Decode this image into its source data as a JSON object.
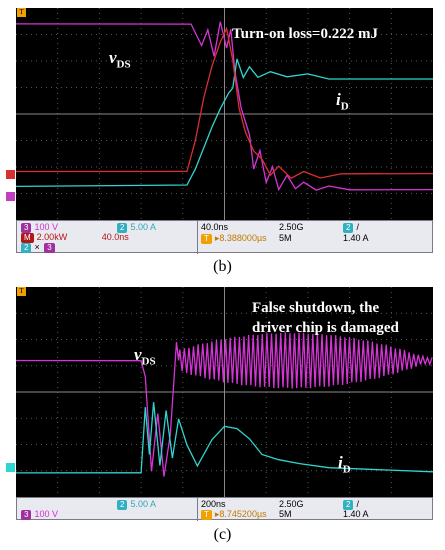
{
  "colors": {
    "vds": "#d535d5",
    "id": "#30d5d0",
    "power": "#d83030",
    "grid": "#555555",
    "trigger": "#f0a000"
  },
  "panel_b": {
    "caption": "(b)",
    "annotation": "Turn-on loss=0.222 mJ",
    "vds_label_main": "v",
    "vds_label_sub": "DS",
    "id_label_main": "i",
    "id_label_sub": "D",
    "info": {
      "ch3_badge": "3",
      "ch3_scale": "100 V",
      "ch2_badge": "2",
      "ch2_scale": "5.00 A",
      "math_badge": "M",
      "math_scale": "2.00kW",
      "math_time": "40.0ns",
      "math_src_a": "2",
      "math_op": "×",
      "math_src_b": "3",
      "timebase": "40.0ns",
      "sample_rate": "2.50G",
      "trig_ch": "2",
      "trig_slope": "/",
      "trig_icon": "T",
      "delay": "▸8.388000µs",
      "record": "5M",
      "trig_level": "1.40 A"
    }
  },
  "panel_c": {
    "caption": "(c)",
    "annotation_line1": "False shutdown, the",
    "annotation_line2": "driver chip is damaged",
    "vds_label_main": "v",
    "vds_label_sub": "DS",
    "id_label_main": "i",
    "id_label_sub": "D",
    "info": {
      "ch3_badge": "3",
      "ch3_scale": "100 V",
      "ch2_badge": "2",
      "ch2_scale": "5.00 A",
      "timebase": "200ns",
      "sample_rate": "2.50G",
      "trig_ch": "2",
      "trig_slope": "/",
      "trig_icon": "T",
      "delay": "▸8.745200µs",
      "record": "5M",
      "trig_level": "1.40 A"
    }
  },
  "chart_data": [
    {
      "type": "line",
      "panel": "b",
      "x_unit": "divisions (40.0 ns/div)",
      "y_unit": "divisions",
      "xlim": [
        0,
        10
      ],
      "ylim": [
        0,
        8
      ],
      "grid": true,
      "series": [
        {
          "name": "vDS",
          "color": "#d535d5",
          "points": [
            [
              0,
              7.4
            ],
            [
              4.2,
              7.4
            ],
            [
              4.45,
              6.6
            ],
            [
              4.6,
              7.2
            ],
            [
              4.75,
              6.2
            ],
            [
              4.9,
              7.5
            ],
            [
              5.05,
              6.5
            ],
            [
              5.15,
              7.2
            ],
            [
              5.25,
              5.6
            ],
            [
              5.4,
              4.2
            ],
            [
              5.6,
              3.2
            ],
            [
              5.7,
              1.9
            ],
            [
              5.85,
              2.6
            ],
            [
              6.0,
              1.4
            ],
            [
              6.15,
              2.0
            ],
            [
              6.3,
              1.15
            ],
            [
              6.5,
              1.7
            ],
            [
              6.7,
              1.2
            ],
            [
              6.9,
              1.45
            ],
            [
              7.2,
              1.15
            ],
            [
              7.5,
              1.3
            ],
            [
              8.0,
              1.15
            ],
            [
              10,
              1.15
            ]
          ]
        },
        {
          "name": "iD",
          "color": "#30d5d0",
          "points": [
            [
              0,
              1.25
            ],
            [
              4.1,
              1.3
            ],
            [
              4.3,
              1.9
            ],
            [
              4.5,
              2.7
            ],
            [
              4.7,
              3.5
            ],
            [
              4.9,
              4.2
            ],
            [
              5.1,
              4.8
            ],
            [
              5.2,
              5.0
            ],
            [
              5.3,
              6.1
            ],
            [
              5.45,
              5.4
            ],
            [
              5.6,
              5.8
            ],
            [
              5.8,
              5.4
            ],
            [
              6.1,
              5.6
            ],
            [
              6.5,
              5.4
            ],
            [
              7.0,
              5.5
            ],
            [
              7.5,
              5.3
            ],
            [
              8.5,
              5.3
            ],
            [
              10,
              5.3
            ]
          ]
        },
        {
          "name": "Turn-on power",
          "color": "#d83030",
          "points": [
            [
              0,
              1.85
            ],
            [
              4.1,
              1.85
            ],
            [
              4.3,
              3.0
            ],
            [
              4.5,
              4.6
            ],
            [
              4.7,
              5.8
            ],
            [
              4.9,
              6.7
            ],
            [
              5.05,
              7.2
            ],
            [
              5.2,
              6.0
            ],
            [
              5.35,
              4.2
            ],
            [
              5.5,
              3.3
            ],
            [
              5.7,
              2.6
            ],
            [
              5.9,
              2.3
            ],
            [
              6.1,
              1.7
            ],
            [
              6.3,
              2.05
            ],
            [
              6.6,
              1.6
            ],
            [
              6.9,
              1.85
            ],
            [
              7.3,
              1.6
            ],
            [
              7.8,
              1.75
            ],
            [
              10,
              1.75
            ]
          ]
        }
      ]
    },
    {
      "type": "line",
      "panel": "c",
      "x_unit": "divisions (200 ns/div)",
      "y_unit": "divisions",
      "xlim": [
        0,
        10
      ],
      "ylim": [
        0,
        8
      ],
      "grid": true,
      "series": [
        {
          "name": "vDS",
          "color": "#d535d5",
          "points": [
            [
              0,
              5.2
            ],
            [
              3.0,
              5.2
            ],
            [
              3.1,
              4.6
            ],
            [
              3.25,
              1.0
            ],
            [
              3.4,
              3.2
            ],
            [
              3.55,
              0.8
            ],
            [
              3.7,
              2.4
            ],
            [
              3.85,
              5.9
            ],
            [
              4.0,
              5.3
            ],
            [
              4.3,
              5.2
            ],
            [
              10,
              5.2
            ]
          ],
          "oscillation": {
            "x_start": 3.9,
            "x_end": 10,
            "center": 5.2,
            "peak_amplitude": 1.05,
            "peak_at": 6.6,
            "period": 0.11
          }
        },
        {
          "name": "iD",
          "color": "#30d5d0",
          "points": [
            [
              0,
              0.9
            ],
            [
              3.0,
              0.9
            ],
            [
              3.1,
              3.4
            ],
            [
              3.2,
              1.6
            ],
            [
              3.3,
              3.6
            ],
            [
              3.45,
              1.2
            ],
            [
              3.6,
              3.3
            ],
            [
              3.75,
              1.5
            ],
            [
              3.9,
              3.0
            ],
            [
              4.1,
              2.0
            ],
            [
              4.35,
              1.2
            ],
            [
              4.7,
              2.2
            ],
            [
              5.0,
              2.7
            ],
            [
              5.3,
              2.6
            ],
            [
              5.6,
              2.2
            ],
            [
              5.9,
              1.6
            ],
            [
              6.3,
              1.4
            ],
            [
              6.8,
              1.25
            ],
            [
              7.5,
              1.1
            ],
            [
              10,
              0.95
            ]
          ]
        }
      ]
    }
  ]
}
